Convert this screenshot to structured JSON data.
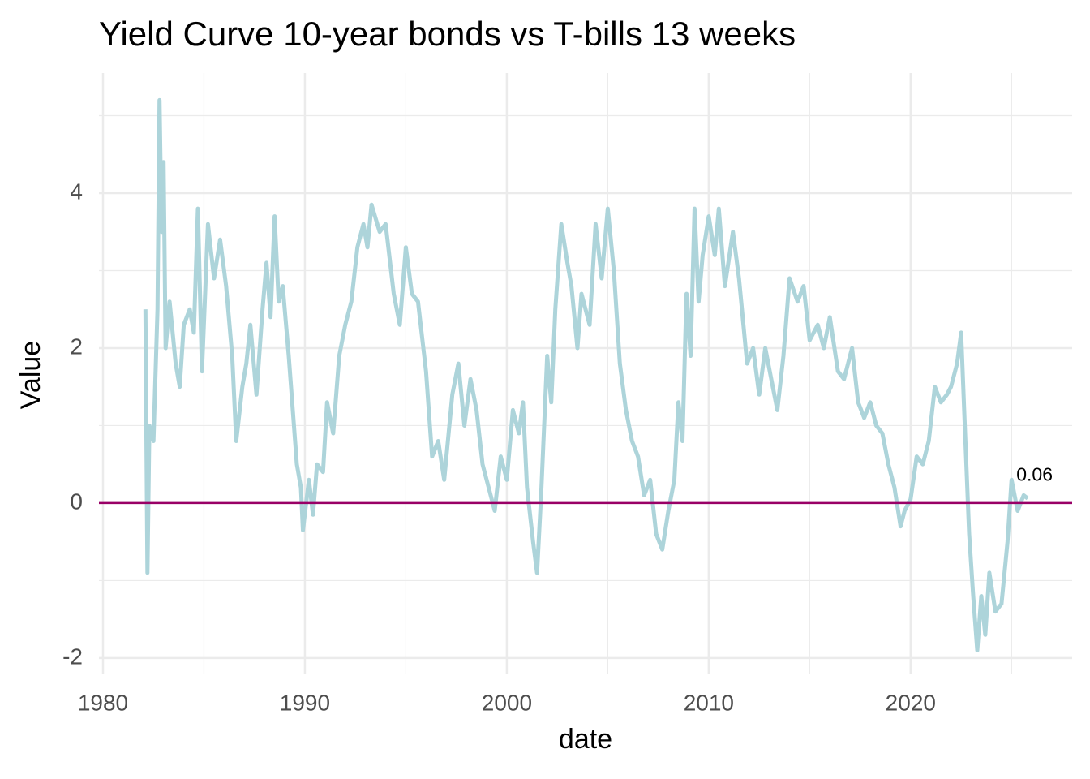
{
  "chart_data": {
    "type": "line",
    "title": "Yield Curve 10-year bonds vs T-bills 13 weeks",
    "x_label": "date",
    "y_label": "Value",
    "color": "#add4da",
    "hline": 0,
    "hline_color": "#990066",
    "annotation": "0.06",
    "grid": true,
    "xlim": [
      1979.8,
      2028
    ],
    "ylim": [
      -2.2,
      5.55
    ],
    "xticks": [
      1980,
      1990,
      2000,
      2010,
      2020
    ],
    "yticks": [
      -2,
      0,
      2,
      4
    ],
    "x": [
      1982.1,
      1982.2,
      1982.3,
      1982.5,
      1982.7,
      1982.8,
      1982.9,
      1983.0,
      1983.1,
      1983.3,
      1983.6,
      1983.8,
      1984.0,
      1984.3,
      1984.5,
      1984.7,
      1984.9,
      1985.2,
      1985.5,
      1985.8,
      1986.1,
      1986.4,
      1986.6,
      1986.9,
      1987.1,
      1987.3,
      1987.6,
      1987.9,
      1988.1,
      1988.3,
      1988.5,
      1988.7,
      1988.9,
      1989.2,
      1989.4,
      1989.6,
      1989.8,
      1989.9,
      1990.2,
      1990.4,
      1990.6,
      1990.9,
      1991.1,
      1991.4,
      1991.7,
      1992.0,
      1992.3,
      1992.6,
      1992.9,
      1993.1,
      1993.3,
      1993.7,
      1994.0,
      1994.4,
      1994.7,
      1995.0,
      1995.3,
      1995.6,
      1996.0,
      1996.3,
      1996.6,
      1996.9,
      1997.3,
      1997.6,
      1997.9,
      1998.2,
      1998.5,
      1998.8,
      1999.1,
      1999.4,
      1999.7,
      2000.0,
      2000.3,
      2000.6,
      2000.8,
      2001.0,
      2001.3,
      2001.5,
      2001.7,
      2002.0,
      2002.2,
      2002.4,
      2002.7,
      2003.0,
      2003.2,
      2003.5,
      2003.7,
      2004.1,
      2004.4,
      2004.7,
      2005.0,
      2005.3,
      2005.6,
      2005.9,
      2006.2,
      2006.5,
      2006.8,
      2007.1,
      2007.4,
      2007.7,
      2008.0,
      2008.3,
      2008.5,
      2008.7,
      2008.9,
      2009.1,
      2009.3,
      2009.5,
      2009.7,
      2010.0,
      2010.3,
      2010.5,
      2010.8,
      2011.2,
      2011.5,
      2011.9,
      2012.2,
      2012.5,
      2012.8,
      2013.1,
      2013.4,
      2013.7,
      2014.0,
      2014.4,
      2014.7,
      2015.0,
      2015.4,
      2015.7,
      2016.0,
      2016.4,
      2016.7,
      2017.1,
      2017.4,
      2017.7,
      2018.0,
      2018.3,
      2018.6,
      2018.9,
      2019.2,
      2019.5,
      2019.7,
      2020.0,
      2020.3,
      2020.6,
      2020.9,
      2021.2,
      2021.5,
      2021.8,
      2022.0,
      2022.3,
      2022.5,
      2022.7,
      2022.9,
      2023.1,
      2023.3,
      2023.5,
      2023.7,
      2023.9,
      2024.2,
      2024.5,
      2024.8,
      2025.0,
      2025.3,
      2025.6,
      2025.8
    ],
    "values": [
      2.5,
      -0.9,
      1.0,
      0.8,
      2.5,
      5.2,
      3.5,
      4.4,
      2.0,
      2.6,
      1.8,
      1.5,
      2.3,
      2.5,
      2.2,
      3.8,
      1.7,
      3.6,
      2.9,
      3.4,
      2.8,
      1.9,
      0.8,
      1.5,
      1.8,
      2.3,
      1.4,
      2.5,
      3.1,
      2.4,
      3.7,
      2.6,
      2.8,
      1.9,
      1.2,
      0.5,
      0.2,
      -0.35,
      0.3,
      -0.15,
      0.5,
      0.4,
      1.3,
      0.9,
      1.9,
      2.3,
      2.6,
      3.3,
      3.6,
      3.3,
      3.85,
      3.5,
      3.6,
      2.7,
      2.3,
      3.3,
      2.7,
      2.6,
      1.7,
      0.6,
      0.8,
      0.3,
      1.4,
      1.8,
      1.0,
      1.6,
      1.2,
      0.5,
      0.2,
      -0.1,
      0.6,
      0.3,
      1.2,
      0.9,
      1.3,
      0.2,
      -0.5,
      -0.9,
      0.1,
      1.9,
      1.3,
      2.5,
      3.6,
      3.1,
      2.8,
      2.0,
      2.7,
      2.3,
      3.6,
      2.9,
      3.8,
      3.0,
      1.8,
      1.2,
      0.8,
      0.6,
      0.1,
      0.3,
      -0.4,
      -0.6,
      -0.1,
      0.3,
      1.3,
      0.8,
      2.7,
      1.9,
      3.8,
      2.6,
      3.2,
      3.7,
      3.2,
      3.8,
      2.8,
      3.5,
      2.9,
      1.8,
      2.0,
      1.4,
      2.0,
      1.6,
      1.2,
      1.9,
      2.9,
      2.6,
      2.8,
      2.1,
      2.3,
      2.0,
      2.4,
      1.7,
      1.6,
      2.0,
      1.3,
      1.1,
      1.3,
      1.0,
      0.9,
      0.5,
      0.2,
      -0.3,
      -0.1,
      0.05,
      0.6,
      0.5,
      0.8,
      1.5,
      1.3,
      1.4,
      1.5,
      1.8,
      2.2,
      0.9,
      -0.4,
      -1.2,
      -1.9,
      -1.2,
      -1.7,
      -0.9,
      -1.4,
      -1.3,
      -0.5,
      0.3,
      -0.1,
      0.1,
      0.06
    ]
  }
}
